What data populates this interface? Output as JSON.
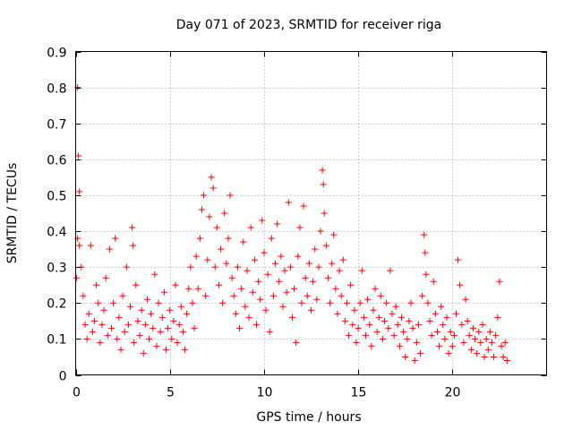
{
  "chart_data": {
    "type": "scatter",
    "title": "Day 071 of 2023, SRMTID for receiver riga",
    "xlabel": "GPS time / hours",
    "ylabel": "SRMTID / TECUs",
    "xlim": [
      0,
      25
    ],
    "ylim": [
      0,
      0.9
    ],
    "xticks": [
      0,
      5,
      10,
      15,
      20
    ],
    "xtick_labels": [
      "0",
      "5",
      "10",
      "15",
      "20"
    ],
    "yticks": [
      0,
      0.1,
      0.2,
      0.3,
      0.4,
      0.5,
      0.6,
      0.7,
      0.8,
      0.9
    ],
    "ytick_labels": [
      "0",
      "0.1",
      "0.2",
      "0.3",
      "0.4",
      "0.5",
      "0.6",
      "0.7",
      "0.8",
      "0.9"
    ],
    "grid": true,
    "marker": "+",
    "color": "#ff0000",
    "series": [
      {
        "name": "SRMTID",
        "points": [
          [
            0.1,
            0.8
          ],
          [
            0.15,
            0.61
          ],
          [
            0.2,
            0.51
          ],
          [
            0.05,
            0.27
          ],
          [
            0.1,
            0.38
          ],
          [
            0.2,
            0.36
          ],
          [
            0.3,
            0.3
          ],
          [
            0.4,
            0.22
          ],
          [
            0.5,
            0.14
          ],
          [
            0.6,
            0.1
          ],
          [
            0.7,
            0.17
          ],
          [
            0.8,
            0.36
          ],
          [
            0.9,
            0.12
          ],
          [
            1.0,
            0.15
          ],
          [
            1.1,
            0.25
          ],
          [
            1.2,
            0.2
          ],
          [
            1.3,
            0.09
          ],
          [
            1.4,
            0.14
          ],
          [
            1.5,
            0.18
          ],
          [
            1.6,
            0.27
          ],
          [
            1.7,
            0.11
          ],
          [
            1.8,
            0.35
          ],
          [
            1.9,
            0.13
          ],
          [
            2.0,
            0.2
          ],
          [
            2.1,
            0.38
          ],
          [
            2.2,
            0.1
          ],
          [
            2.3,
            0.16
          ],
          [
            2.4,
            0.07
          ],
          [
            2.5,
            0.22
          ],
          [
            2.6,
            0.12
          ],
          [
            2.7,
            0.3
          ],
          [
            2.8,
            0.14
          ],
          [
            2.9,
            0.19
          ],
          [
            3.0,
            0.41
          ],
          [
            3.05,
            0.36
          ],
          [
            3.1,
            0.09
          ],
          [
            3.2,
            0.25
          ],
          [
            3.3,
            0.15
          ],
          [
            3.4,
            0.11
          ],
          [
            3.5,
            0.18
          ],
          [
            3.6,
            0.06
          ],
          [
            3.7,
            0.14
          ],
          [
            3.8,
            0.21
          ],
          [
            3.9,
            0.1
          ],
          [
            4.0,
            0.17
          ],
          [
            4.1,
            0.13
          ],
          [
            4.2,
            0.28
          ],
          [
            4.3,
            0.08
          ],
          [
            4.4,
            0.2
          ],
          [
            4.5,
            0.12
          ],
          [
            4.6,
            0.16
          ],
          [
            4.7,
            0.23
          ],
          [
            4.8,
            0.07
          ],
          [
            4.9,
            0.13
          ],
          [
            5.0,
            0.18
          ],
          [
            5.1,
            0.1
          ],
          [
            5.2,
            0.15
          ],
          [
            5.3,
            0.25
          ],
          [
            5.4,
            0.09
          ],
          [
            5.5,
            0.14
          ],
          [
            5.6,
            0.19
          ],
          [
            5.7,
            0.12
          ],
          [
            5.8,
            0.07
          ],
          [
            5.9,
            0.17
          ],
          [
            6.0,
            0.24
          ],
          [
            6.1,
            0.3
          ],
          [
            6.2,
            0.2
          ],
          [
            6.3,
            0.13
          ],
          [
            6.4,
            0.33
          ],
          [
            6.5,
            0.24
          ],
          [
            6.6,
            0.38
          ],
          [
            6.7,
            0.46
          ],
          [
            6.8,
            0.5
          ],
          [
            6.9,
            0.22
          ],
          [
            7.0,
            0.32
          ],
          [
            7.1,
            0.44
          ],
          [
            7.2,
            0.55
          ],
          [
            7.3,
            0.52
          ],
          [
            7.4,
            0.3
          ],
          [
            7.5,
            0.41
          ],
          [
            7.6,
            0.25
          ],
          [
            7.7,
            0.35
          ],
          [
            7.8,
            0.2
          ],
          [
            7.9,
            0.45
          ],
          [
            8.0,
            0.31
          ],
          [
            8.1,
            0.38
          ],
          [
            8.2,
            0.5
          ],
          [
            8.3,
            0.27
          ],
          [
            8.4,
            0.22
          ],
          [
            8.5,
            0.17
          ],
          [
            8.6,
            0.3
          ],
          [
            8.7,
            0.13
          ],
          [
            8.8,
            0.24
          ],
          [
            8.9,
            0.37
          ],
          [
            9.0,
            0.19
          ],
          [
            9.1,
            0.29
          ],
          [
            9.2,
            0.16
          ],
          [
            9.3,
            0.41
          ],
          [
            9.4,
            0.23
          ],
          [
            9.5,
            0.32
          ],
          [
            9.6,
            0.14
          ],
          [
            9.7,
            0.26
          ],
          [
            9.8,
            0.21
          ],
          [
            9.9,
            0.43
          ],
          [
            10.0,
            0.34
          ],
          [
            10.1,
            0.18
          ],
          [
            10.2,
            0.28
          ],
          [
            10.3,
            0.12
          ],
          [
            10.4,
            0.38
          ],
          [
            10.5,
            0.22
          ],
          [
            10.6,
            0.31
          ],
          [
            10.7,
            0.42
          ],
          [
            10.8,
            0.26
          ],
          [
            10.9,
            0.33
          ],
          [
            11.0,
            0.19
          ],
          [
            11.1,
            0.29
          ],
          [
            11.2,
            0.23
          ],
          [
            11.3,
            0.48
          ],
          [
            11.4,
            0.3
          ],
          [
            11.5,
            0.16
          ],
          [
            11.6,
            0.24
          ],
          [
            11.7,
            0.09
          ],
          [
            11.8,
            0.33
          ],
          [
            11.9,
            0.41
          ],
          [
            12.0,
            0.2
          ],
          [
            12.1,
            0.47
          ],
          [
            12.2,
            0.27
          ],
          [
            12.3,
            0.22
          ],
          [
            12.4,
            0.31
          ],
          [
            12.5,
            0.18
          ],
          [
            12.6,
            0.26
          ],
          [
            12.7,
            0.35
          ],
          [
            12.8,
            0.21
          ],
          [
            12.9,
            0.3
          ],
          [
            13.0,
            0.4
          ],
          [
            13.1,
            0.57
          ],
          [
            13.15,
            0.53
          ],
          [
            13.2,
            0.45
          ],
          [
            13.3,
            0.36
          ],
          [
            13.4,
            0.27
          ],
          [
            13.5,
            0.2
          ],
          [
            13.6,
            0.31
          ],
          [
            13.7,
            0.39
          ],
          [
            13.8,
            0.24
          ],
          [
            13.9,
            0.17
          ],
          [
            14.0,
            0.29
          ],
          [
            14.1,
            0.22
          ],
          [
            14.2,
            0.32
          ],
          [
            14.3,
            0.15
          ],
          [
            14.4,
            0.2
          ],
          [
            14.5,
            0.11
          ],
          [
            14.6,
            0.25
          ],
          [
            14.7,
            0.14
          ],
          [
            14.8,
            0.18
          ],
          [
            14.9,
            0.09
          ],
          [
            15.0,
            0.13
          ],
          [
            15.1,
            0.2
          ],
          [
            15.2,
            0.29
          ],
          [
            15.3,
            0.16
          ],
          [
            15.4,
            0.11
          ],
          [
            15.5,
            0.21
          ],
          [
            15.6,
            0.14
          ],
          [
            15.7,
            0.08
          ],
          [
            15.8,
            0.18
          ],
          [
            15.9,
            0.24
          ],
          [
            16.0,
            0.12
          ],
          [
            16.1,
            0.16
          ],
          [
            16.2,
            0.22
          ],
          [
            16.3,
            0.1
          ],
          [
            16.4,
            0.15
          ],
          [
            16.5,
            0.2
          ],
          [
            16.6,
            0.13
          ],
          [
            16.7,
            0.29
          ],
          [
            16.8,
            0.17
          ],
          [
            16.9,
            0.11
          ],
          [
            17.0,
            0.19
          ],
          [
            17.1,
            0.14
          ],
          [
            17.2,
            0.08
          ],
          [
            17.3,
            0.16
          ],
          [
            17.4,
            0.12
          ],
          [
            17.5,
            0.05
          ],
          [
            17.6,
            0.1
          ],
          [
            17.7,
            0.15
          ],
          [
            17.8,
            0.2
          ],
          [
            17.9,
            0.13
          ],
          [
            18.0,
            0.04
          ],
          [
            18.1,
            0.09
          ],
          [
            18.2,
            0.14
          ],
          [
            18.3,
            0.06
          ],
          [
            18.4,
            0.22
          ],
          [
            18.5,
            0.39
          ],
          [
            18.55,
            0.34
          ],
          [
            18.6,
            0.28
          ],
          [
            18.7,
            0.2
          ],
          [
            18.8,
            0.15
          ],
          [
            18.9,
            0.11
          ],
          [
            19.0,
            0.26
          ],
          [
            19.1,
            0.17
          ],
          [
            19.2,
            0.12
          ],
          [
            19.3,
            0.08
          ],
          [
            19.4,
            0.19
          ],
          [
            19.5,
            0.14
          ],
          [
            19.6,
            0.1
          ],
          [
            19.7,
            0.16
          ],
          [
            19.8,
            0.06
          ],
          [
            19.9,
            0.12
          ],
          [
            20.0,
            0.08
          ],
          [
            20.1,
            0.11
          ],
          [
            20.2,
            0.17
          ],
          [
            20.3,
            0.32
          ],
          [
            20.4,
            0.25
          ],
          [
            20.5,
            0.14
          ],
          [
            20.6,
            0.09
          ],
          [
            20.7,
            0.21
          ],
          [
            20.8,
            0.15
          ],
          [
            20.9,
            0.11
          ],
          [
            21.0,
            0.07
          ],
          [
            21.1,
            0.13
          ],
          [
            21.2,
            0.1
          ],
          [
            21.3,
            0.06
          ],
          [
            21.4,
            0.12
          ],
          [
            21.5,
            0.09
          ],
          [
            21.6,
            0.14
          ],
          [
            21.7,
            0.05
          ],
          [
            21.8,
            0.1
          ],
          [
            21.9,
            0.07
          ],
          [
            22.0,
            0.12
          ],
          [
            22.1,
            0.09
          ],
          [
            22.2,
            0.05
          ],
          [
            22.3,
            0.11
          ],
          [
            22.4,
            0.16
          ],
          [
            22.5,
            0.26
          ],
          [
            22.6,
            0.08
          ],
          [
            22.7,
            0.05
          ],
          [
            22.8,
            0.09
          ],
          [
            22.9,
            0.04
          ]
        ]
      }
    ]
  }
}
